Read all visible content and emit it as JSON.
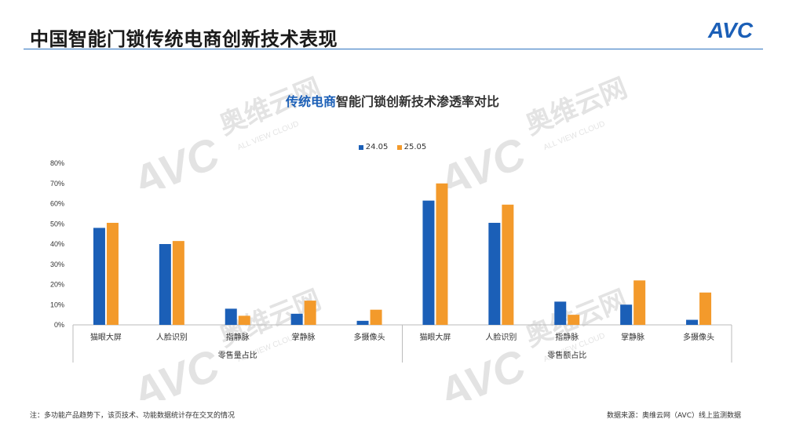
{
  "header": {
    "title": "中国智能门锁传统电商创新技术表现",
    "logo_text": "AVC"
  },
  "chart_title": {
    "highlight": "传统电商",
    "rest": "智能门锁创新技术渗透率对比"
  },
  "watermark": {
    "cn": "奥维云网",
    "en": "ALL VIEW CLOUD",
    "logo": "AVC"
  },
  "footer": {
    "note": "注：多功能产品趋势下，该页技术、功能数据统计存在交叉的情况",
    "source": "数据来源：奥维云网（AVC）线上监测数据"
  },
  "colors": {
    "series1": "#1b5fb7",
    "series2": "#f39a2b",
    "accent": "#2f74c0"
  },
  "chart_data": {
    "type": "bar",
    "legend_position": "top",
    "ylim": [
      0,
      80
    ],
    "yticks": [
      "0%",
      "10%",
      "20%",
      "30%",
      "40%",
      "50%",
      "60%",
      "70%",
      "80%"
    ],
    "groups": [
      {
        "label": "零售量占比",
        "categories": [
          "猫眼大屏",
          "人脸识别",
          "指静脉",
          "掌静脉",
          "多摄像头"
        ]
      },
      {
        "label": "零售额占比",
        "categories": [
          "猫眼大屏",
          "人脸识别",
          "指静脉",
          "掌静脉",
          "多摄像头"
        ]
      }
    ],
    "series": [
      {
        "name": "24.05",
        "values": [
          48,
          40,
          8,
          5.5,
          2,
          61.5,
          50.5,
          11.5,
          10,
          2.5
        ]
      },
      {
        "name": "25.05",
        "values": [
          50.5,
          41.5,
          4.5,
          12,
          7.5,
          70,
          59.5,
          5,
          22,
          16
        ]
      }
    ]
  }
}
